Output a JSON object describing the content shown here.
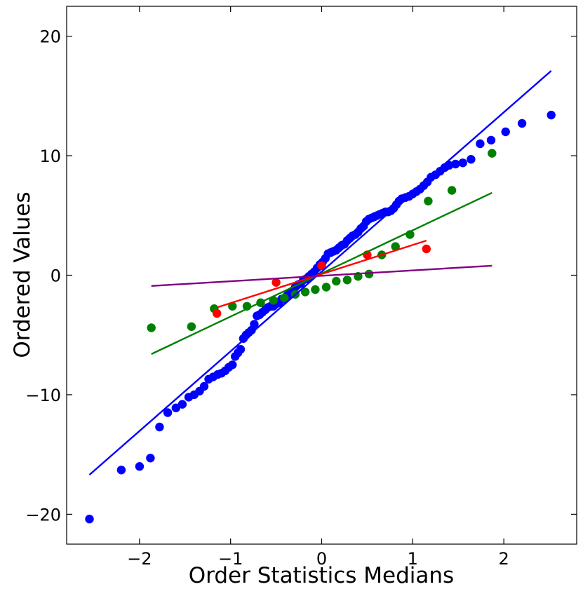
{
  "chart_data": {
    "type": "scatter",
    "title": "",
    "xlabel": "Order Statistics Medians",
    "ylabel": "Ordered Values",
    "xlim": [
      -2.8,
      2.8
    ],
    "ylim": [
      -22.5,
      22.5
    ],
    "xticks": [
      -2,
      -1,
      0,
      1,
      2
    ],
    "xtick_labels": [
      "−2",
      "−1",
      "0",
      "1",
      "2"
    ],
    "yticks": [
      -20,
      -10,
      0,
      10,
      20
    ],
    "ytick_labels": [
      "−20",
      "−10",
      "0",
      "10",
      "20"
    ],
    "grid": false,
    "series": [
      {
        "name": "blue",
        "color": "#0000ff",
        "fit_line": {
          "x": [
            -2.55,
            2.52
          ],
          "y": [
            -16.7,
            17.1
          ]
        },
        "points": [
          [
            -2.55,
            -20.4
          ],
          [
            -2.2,
            -16.3
          ],
          [
            -2.0,
            -16.0
          ],
          [
            -1.88,
            -15.3
          ],
          [
            -1.78,
            -12.7
          ],
          [
            -1.69,
            -11.5
          ],
          [
            -1.6,
            -11.1
          ],
          [
            -1.53,
            -10.8
          ],
          [
            -1.46,
            -10.2
          ],
          [
            -1.4,
            -10.0
          ],
          [
            -1.34,
            -9.7
          ],
          [
            -1.29,
            -9.3
          ],
          [
            -1.24,
            -8.7
          ],
          [
            -1.19,
            -8.5
          ],
          [
            -1.14,
            -8.3
          ],
          [
            -1.1,
            -8.2
          ],
          [
            -1.06,
            -8.0
          ],
          [
            -1.02,
            -7.7
          ],
          [
            -0.98,
            -7.5
          ],
          [
            -0.95,
            -6.8
          ],
          [
            -0.92,
            -6.5
          ],
          [
            -0.89,
            -6.2
          ],
          [
            -0.86,
            -5.3
          ],
          [
            -0.83,
            -5.0
          ],
          [
            -0.8,
            -4.8
          ],
          [
            -0.77,
            -4.6
          ],
          [
            -0.74,
            -4.1
          ],
          [
            -0.71,
            -3.4
          ],
          [
            -0.68,
            -3.3
          ],
          [
            -0.65,
            -3.1
          ],
          [
            -0.62,
            -2.9
          ],
          [
            -0.59,
            -2.7
          ],
          [
            -0.56,
            -2.6
          ],
          [
            -0.53,
            -2.6
          ],
          [
            -0.5,
            -2.4
          ],
          [
            -0.47,
            -2.3
          ],
          [
            -0.44,
            -2.0
          ],
          [
            -0.41,
            -2.0
          ],
          [
            -0.38,
            -1.7
          ],
          [
            -0.35,
            -1.5
          ],
          [
            -0.32,
            -1.3
          ],
          [
            -0.29,
            -1.0
          ],
          [
            -0.26,
            -0.8
          ],
          [
            -0.23,
            -0.7
          ],
          [
            -0.2,
            -0.4
          ],
          [
            -0.17,
            -0.3
          ],
          [
            -0.14,
            -0.1
          ],
          [
            -0.11,
            0.1
          ],
          [
            -0.08,
            0.3
          ],
          [
            -0.05,
            0.6
          ],
          [
            -0.02,
            0.9
          ],
          [
            0.01,
            1.1
          ],
          [
            0.04,
            1.4
          ],
          [
            0.07,
            1.8
          ],
          [
            0.1,
            1.9
          ],
          [
            0.13,
            2.0
          ],
          [
            0.16,
            2.1
          ],
          [
            0.19,
            2.3
          ],
          [
            0.22,
            2.5
          ],
          [
            0.25,
            2.6
          ],
          [
            0.28,
            2.9
          ],
          [
            0.31,
            3.1
          ],
          [
            0.34,
            3.3
          ],
          [
            0.37,
            3.4
          ],
          [
            0.4,
            3.6
          ],
          [
            0.43,
            3.9
          ],
          [
            0.46,
            4.1
          ],
          [
            0.49,
            4.5
          ],
          [
            0.52,
            4.7
          ],
          [
            0.55,
            4.8
          ],
          [
            0.58,
            4.9
          ],
          [
            0.61,
            5.0
          ],
          [
            0.64,
            5.1
          ],
          [
            0.67,
            5.2
          ],
          [
            0.7,
            5.3
          ],
          [
            0.73,
            5.3
          ],
          [
            0.76,
            5.4
          ],
          [
            0.79,
            5.6
          ],
          [
            0.82,
            5.9
          ],
          [
            0.85,
            6.2
          ],
          [
            0.88,
            6.4
          ],
          [
            0.92,
            6.5
          ],
          [
            0.96,
            6.6
          ],
          [
            1.0,
            6.8
          ],
          [
            1.04,
            7.0
          ],
          [
            1.08,
            7.2
          ],
          [
            1.12,
            7.5
          ],
          [
            1.16,
            7.8
          ],
          [
            1.2,
            8.2
          ],
          [
            1.25,
            8.4
          ],
          [
            1.3,
            8.7
          ],
          [
            1.35,
            9.0
          ],
          [
            1.4,
            9.2
          ],
          [
            1.47,
            9.3
          ],
          [
            1.55,
            9.4
          ],
          [
            1.64,
            9.7
          ],
          [
            1.74,
            11.0
          ],
          [
            1.86,
            11.3
          ],
          [
            2.02,
            12.0
          ],
          [
            2.2,
            12.7
          ],
          [
            2.52,
            13.4
          ]
        ]
      },
      {
        "name": "green",
        "color": "#008000",
        "fit_line": {
          "x": [
            -1.87,
            1.87
          ],
          "y": [
            -6.6,
            6.9
          ]
        },
        "points": [
          [
            -1.87,
            -4.4
          ],
          [
            -1.43,
            -4.3
          ],
          [
            -1.18,
            -2.8
          ],
          [
            -0.98,
            -2.6
          ],
          [
            -0.82,
            -2.6
          ],
          [
            -0.67,
            -2.3
          ],
          [
            -0.53,
            -2.1
          ],
          [
            -0.41,
            -1.9
          ],
          [
            -0.29,
            -1.6
          ],
          [
            -0.18,
            -1.4
          ],
          [
            -0.07,
            -1.2
          ],
          [
            0.05,
            -1.0
          ],
          [
            0.16,
            -0.5
          ],
          [
            0.28,
            -0.4
          ],
          [
            0.4,
            -0.1
          ],
          [
            0.52,
            0.1
          ],
          [
            0.66,
            1.7
          ],
          [
            0.81,
            2.4
          ],
          [
            0.97,
            3.4
          ],
          [
            1.17,
            6.2
          ],
          [
            1.43,
            7.1
          ],
          [
            1.87,
            10.2
          ]
        ]
      },
      {
        "name": "red",
        "color": "#ff0000",
        "fit_line": {
          "x": [
            -1.15,
            1.15
          ],
          "y": [
            -2.7,
            2.9
          ]
        },
        "points": [
          [
            -1.15,
            -3.2
          ],
          [
            -0.5,
            -0.6
          ],
          [
            0.0,
            0.8
          ],
          [
            0.5,
            1.7
          ],
          [
            1.15,
            2.2
          ]
        ]
      },
      {
        "name": "purple",
        "color": "#800080",
        "fit_line": {
          "x": [
            -1.87,
            1.87
          ],
          "y": [
            -0.9,
            0.8
          ]
        },
        "points": []
      }
    ]
  }
}
